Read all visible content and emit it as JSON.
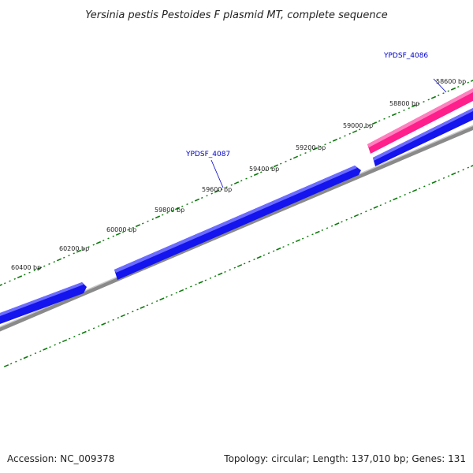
{
  "title": "Yersinia pestis Pestoides F plasmid MT, complete sequence",
  "footer": {
    "accession": "Accession: NC_009378",
    "summary": "Topology: circular; Length: 137,010 bp; Genes: 131"
  },
  "colors": {
    "background": "#ffffff",
    "forward_gene": "#ff1f8c",
    "reverse_gene": "#1010ee",
    "backbone": "#888888",
    "tick": "#0a7a0a",
    "gene_label": "#0000cc"
  },
  "tick_labels": [
    "58600 bp",
    "58800 bp",
    "59000 bp",
    "59200 bp",
    "59400 bp",
    "59600 bp",
    "59800 bp",
    "60000 bp",
    "60200 bp",
    "60400 bp"
  ],
  "gene_labels": [
    "YPDSF_4086",
    "YPDSF_4087"
  ],
  "genes": [
    {
      "strand": "forward",
      "name": "YPDSF_4086"
    },
    {
      "strand": "reverse",
      "name": "YPDSF_4086"
    },
    {
      "strand": "reverse",
      "name": "YPDSF_4087"
    },
    {
      "strand": "reverse",
      "name": ""
    }
  ]
}
